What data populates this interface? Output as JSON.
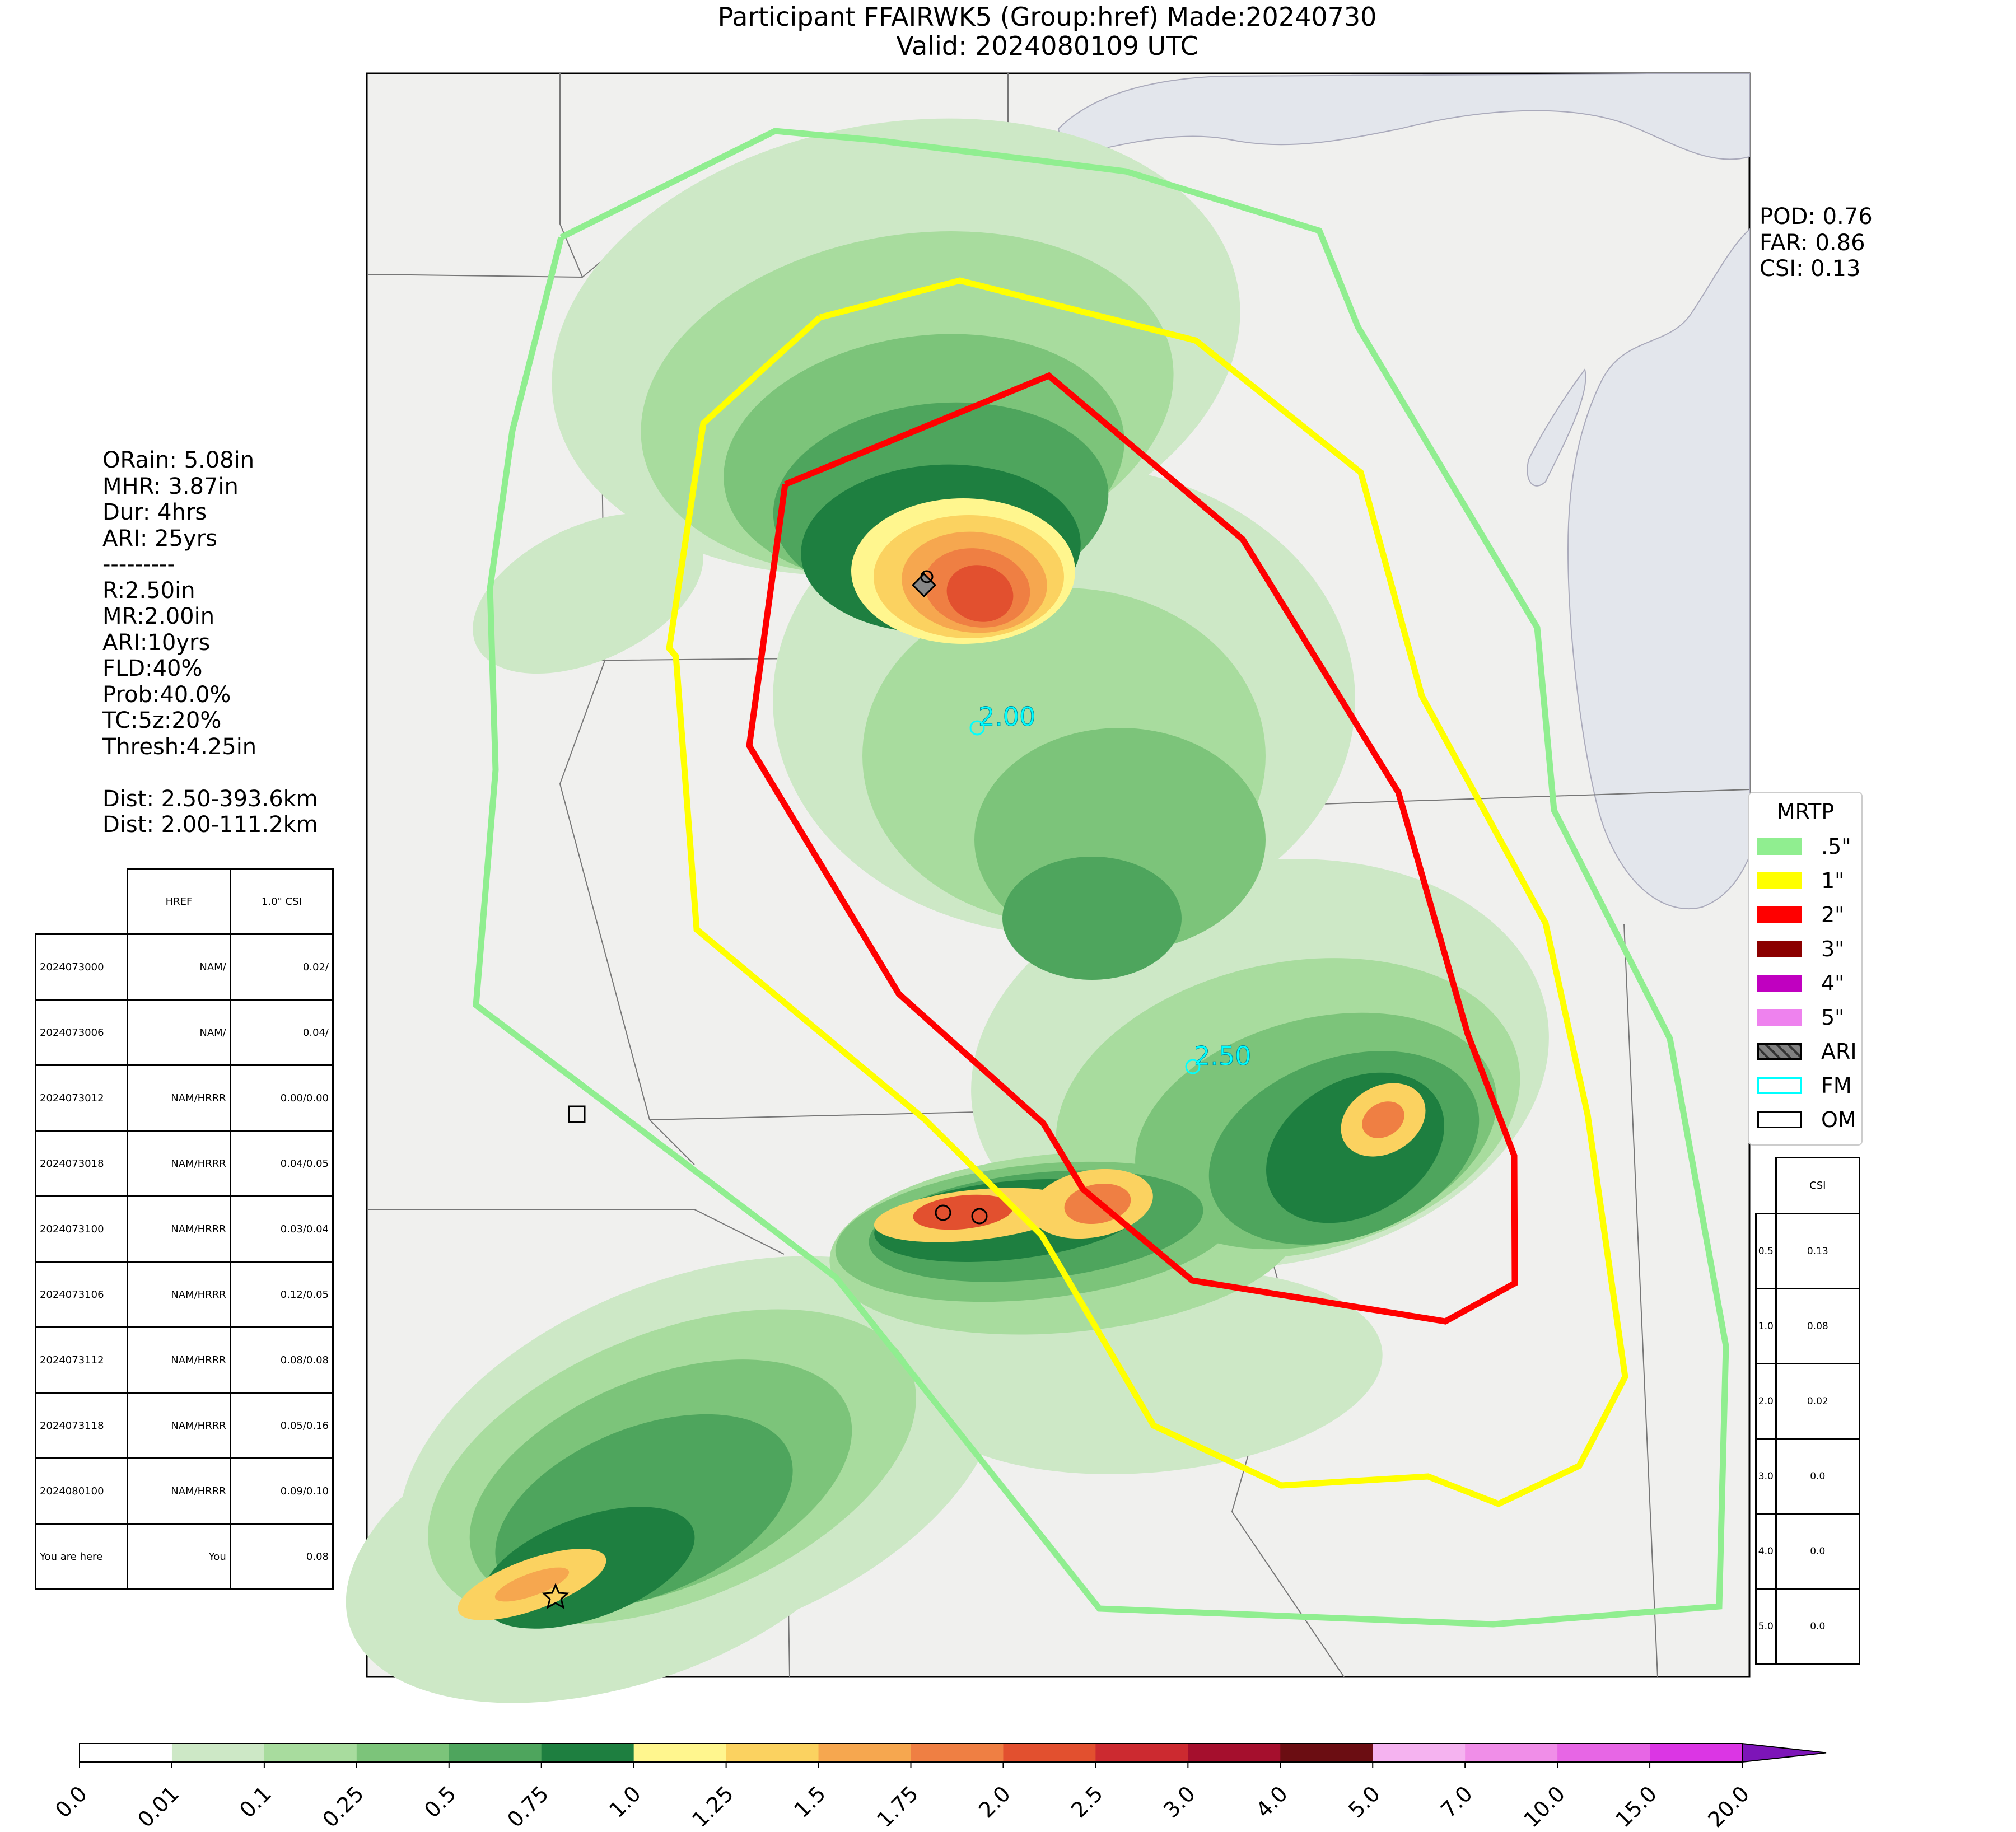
{
  "title": {
    "line1": "Participant FFAIRWK5 (Group:href) Made:20240730",
    "line2": "Valid: 2024080109 UTC"
  },
  "scores": [
    "POD: 0.76",
    "FAR: 0.86",
    "CSI: 0.13"
  ],
  "stats": [
    "ORain: 5.08in",
    "MHR: 3.87in",
    "Dur: 4hrs",
    "ARI: 25yrs",
    "---------",
    "R:2.50in",
    "MR:2.00in",
    "ARI:10yrs",
    "FLD:40%",
    "Prob:40.0%",
    "TC:5z:20%",
    "Thresh:4.25in",
    "",
    "Dist: 2.50-393.6km",
    "Dist: 2.00-111.2km"
  ],
  "history_table": {
    "headers": [
      "",
      "HREF",
      "1.0\" CSI"
    ],
    "rows": [
      [
        "2024073000",
        "NAM/",
        "0.02/"
      ],
      [
        "2024073006",
        "NAM/",
        "0.04/"
      ],
      [
        "2024073012",
        "NAM/HRRR",
        "0.00/0.00"
      ],
      [
        "2024073018",
        "NAM/HRRR",
        "0.04/0.05"
      ],
      [
        "2024073100",
        "NAM/HRRR",
        "0.03/0.04"
      ],
      [
        "2024073106",
        "NAM/HRRR",
        "0.12/0.05"
      ],
      [
        "2024073112",
        "NAM/HRRR",
        "0.08/0.08"
      ],
      [
        "2024073118",
        "NAM/HRRR",
        "0.05/0.16"
      ],
      [
        "2024080100",
        "NAM/HRRR",
        "0.09/0.10"
      ],
      [
        "You are here",
        "You",
        "0.08"
      ]
    ]
  },
  "csi_table": {
    "header": "CSI",
    "rows": [
      [
        "0.5",
        "0.13"
      ],
      [
        "1.0",
        "0.08"
      ],
      [
        "2.0",
        "0.02"
      ],
      [
        "3.0",
        "0.0"
      ],
      [
        "4.0",
        "0.0"
      ],
      [
        "5.0",
        "0.0"
      ]
    ]
  },
  "legend": {
    "title": "MRTP",
    "items": [
      {
        "label": ".5\"",
        "color": "#90ee90"
      },
      {
        "label": "1\"",
        "color": "#ffff00"
      },
      {
        "label": "2\"",
        "color": "#ff0000"
      },
      {
        "label": "3\"",
        "color": "#8b0000"
      },
      {
        "label": "4\"",
        "color": "#c000c0"
      },
      {
        "label": "5\"",
        "color": "#ee82ee"
      },
      {
        "label": "ARI",
        "color": "#808080"
      },
      {
        "label": "FM",
        "color": "#00ffff"
      },
      {
        "label": "OM",
        "color": "#000000"
      }
    ]
  },
  "contour_labels": [
    "2.00",
    "2.50"
  ],
  "colorbar": {
    "ticks": [
      "0.0",
      "0.01",
      "0.1",
      "0.25",
      "0.5",
      "0.75",
      "1.0",
      "1.25",
      "1.5",
      "1.75",
      "2.0",
      "2.5",
      "3.0",
      "4.0",
      "5.0",
      "7.0",
      "10.0",
      "15.0",
      "20.0"
    ],
    "colors": [
      "#ffffff",
      "#cde8c6",
      "#a8dc9e",
      "#7cc47a",
      "#4ea55d",
      "#1e7f40",
      "#fff68e",
      "#fbd260",
      "#f6a74f",
      "#ef7f43",
      "#e2502f",
      "#cc2a30",
      "#a50f2d",
      "#6b0d12",
      "#f5b3f0",
      "#f08ee8",
      "#e766e5",
      "#db36e4",
      "#b120d6",
      "#7d15b8"
    ]
  }
}
